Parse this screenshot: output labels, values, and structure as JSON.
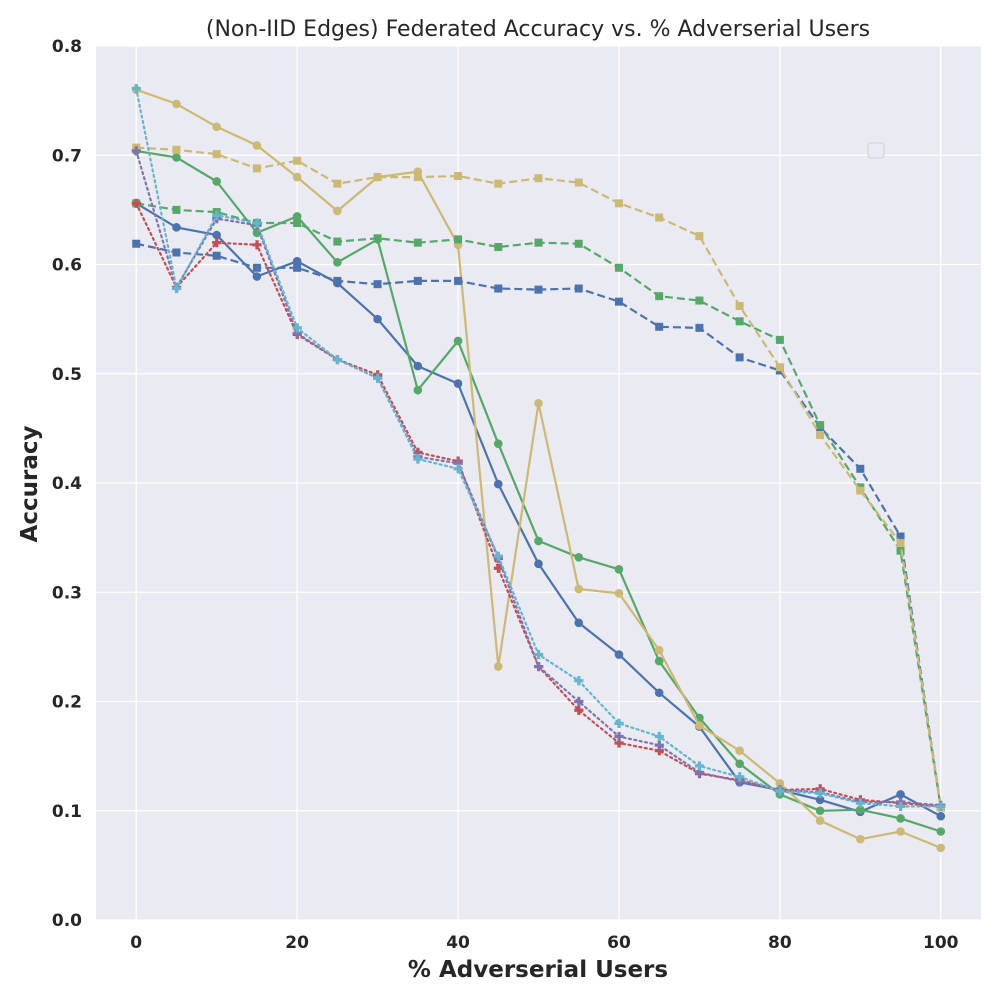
{
  "chart_data": {
    "type": "line",
    "title": "(Non-IID Edges) Federated Accuracy vs. % Adverserial Users",
    "xlabel": "% Adverserial Users",
    "ylabel": "Accuracy",
    "xlim": [
      -5,
      105
    ],
    "ylim": [
      0,
      0.8
    ],
    "x_ticks": [
      0,
      20,
      40,
      60,
      80,
      100
    ],
    "y_ticks": [
      0.0,
      0.1,
      0.2,
      0.3,
      0.4,
      0.5,
      0.6,
      0.7,
      0.8
    ],
    "grid": true,
    "legend_placement": "right (empty)",
    "background": "#eaeaf2",
    "x": [
      0,
      5,
      10,
      15,
      20,
      25,
      30,
      35,
      40,
      45,
      50,
      55,
      60,
      65,
      70,
      75,
      80,
      85,
      90,
      95,
      100
    ],
    "series": [
      {
        "color": "#4c72b0",
        "linestyle": "solid",
        "marker": "circle",
        "values": [
          0.656,
          0.634,
          0.627,
          0.589,
          0.603,
          0.583,
          0.55,
          0.507,
          0.491,
          0.399,
          0.326,
          0.272,
          0.243,
          0.208,
          0.177,
          0.126,
          0.119,
          0.11,
          0.099,
          0.115,
          0.095
        ]
      },
      {
        "color": "#55a868",
        "linestyle": "solid",
        "marker": "circle",
        "values": [
          0.704,
          0.698,
          0.676,
          0.629,
          0.644,
          0.602,
          0.623,
          0.485,
          0.53,
          0.436,
          0.347,
          0.332,
          0.321,
          0.237,
          0.185,
          0.143,
          0.115,
          0.1,
          0.101,
          0.093,
          0.081
        ]
      },
      {
        "color": "#ccb974",
        "linestyle": "solid",
        "marker": "circle",
        "values": [
          0.76,
          0.747,
          0.726,
          0.709,
          0.68,
          0.649,
          0.68,
          0.685,
          0.618,
          0.232,
          0.473,
          0.303,
          0.299,
          0.247,
          0.178,
          0.155,
          0.125,
          0.091,
          0.074,
          0.081,
          0.066
        ]
      },
      {
        "color": "#4c72b0",
        "linestyle": "dashed",
        "marker": "square",
        "values": [
          0.619,
          0.611,
          0.608,
          0.597,
          0.597,
          0.585,
          0.582,
          0.585,
          0.585,
          0.578,
          0.577,
          0.578,
          0.566,
          0.543,
          0.542,
          0.515,
          0.503,
          0.451,
          0.413,
          0.351,
          0.103
        ]
      },
      {
        "color": "#55a868",
        "linestyle": "dashed",
        "marker": "square",
        "values": [
          0.656,
          0.65,
          0.648,
          0.638,
          0.638,
          0.621,
          0.624,
          0.62,
          0.623,
          0.616,
          0.62,
          0.619,
          0.597,
          0.571,
          0.567,
          0.548,
          0.531,
          0.453,
          0.396,
          0.338,
          0.103
        ]
      },
      {
        "color": "#ccb974",
        "linestyle": "dashed",
        "marker": "square",
        "values": [
          0.707,
          0.705,
          0.701,
          0.688,
          0.695,
          0.674,
          0.68,
          0.68,
          0.681,
          0.674,
          0.679,
          0.675,
          0.656,
          0.643,
          0.626,
          0.562,
          0.506,
          0.444,
          0.393,
          0.345,
          0.103
        ]
      },
      {
        "color": "#c44e52",
        "linestyle": "dotted",
        "marker": "plus",
        "values": [
          0.656,
          0.579,
          0.62,
          0.618,
          0.536,
          0.513,
          0.499,
          0.428,
          0.42,
          0.322,
          0.232,
          0.192,
          0.162,
          0.155,
          0.134,
          0.128,
          0.119,
          0.12,
          0.11,
          0.107,
          0.104
        ]
      },
      {
        "color": "#8172b2",
        "linestyle": "dotted",
        "marker": "plus",
        "values": [
          0.704,
          0.579,
          0.642,
          0.636,
          0.537,
          0.513,
          0.496,
          0.424,
          0.418,
          0.331,
          0.232,
          0.2,
          0.168,
          0.16,
          0.135,
          0.127,
          0.119,
          0.117,
          0.108,
          0.108,
          0.105
        ]
      },
      {
        "color": "#64b5cd",
        "linestyle": "dotted",
        "marker": "plus",
        "values": [
          0.761,
          0.578,
          0.645,
          0.638,
          0.542,
          0.513,
          0.496,
          0.422,
          0.413,
          0.333,
          0.243,
          0.219,
          0.18,
          0.168,
          0.141,
          0.131,
          0.118,
          0.116,
          0.107,
          0.104,
          0.104
        ]
      }
    ]
  }
}
